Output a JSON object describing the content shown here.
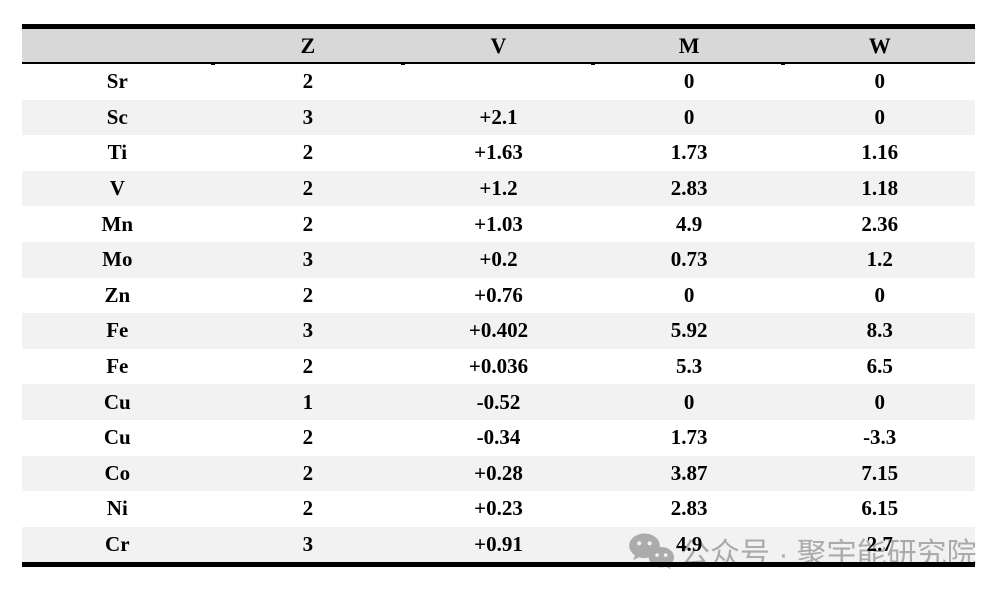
{
  "chart_data": {
    "type": "table",
    "columns": [
      "",
      "Z",
      "V",
      "M",
      "W"
    ],
    "rows": [
      {
        "element": "Sr",
        "Z": "2",
        "V": "",
        "M": "0",
        "W": "0"
      },
      {
        "element": "Sc",
        "Z": "3",
        "V": "+2.1",
        "M": "0",
        "W": "0"
      },
      {
        "element": "Ti",
        "Z": "2",
        "V": "+1.63",
        "M": "1.73",
        "W": "1.16"
      },
      {
        "element": "V",
        "Z": "2",
        "V": "+1.2",
        "M": "2.83",
        "W": "1.18"
      },
      {
        "element": "Mn",
        "Z": "2",
        "V": "+1.03",
        "M": "4.9",
        "W": "2.36"
      },
      {
        "element": "Mo",
        "Z": "3",
        "V": "+0.2",
        "M": "0.73",
        "W": "1.2"
      },
      {
        "element": "Zn",
        "Z": "2",
        "V": "+0.76",
        "M": "0",
        "W": "0"
      },
      {
        "element": "Fe",
        "Z": "3",
        "V": "+0.402",
        "M": "5.92",
        "W": "8.3"
      },
      {
        "element": "Fe",
        "Z": "2",
        "V": "+0.036",
        "M": "5.3",
        "W": "6.5"
      },
      {
        "element": "Cu",
        "Z": "1",
        "V": "-0.52",
        "M": "0",
        "W": "0"
      },
      {
        "element": "Cu",
        "Z": "2",
        "V": "-0.34",
        "M": "1.73",
        "W": "-3.3"
      },
      {
        "element": "Co",
        "Z": "2",
        "V": "+0.28",
        "M": "3.87",
        "W": "7.15"
      },
      {
        "element": "Ni",
        "Z": "2",
        "V": "+0.23",
        "M": "2.83",
        "W": "6.15"
      },
      {
        "element": "Cr",
        "Z": "3",
        "V": "+0.91",
        "M": "4.9",
        "W": "2.7"
      }
    ],
    "layout": {
      "header_background": "#d8d8d8",
      "alt_row_background": "#f2f2f2",
      "border_color": "#000000",
      "grid": "off"
    }
  },
  "watermark": {
    "icon": "wechat-icon",
    "text": "公众号 · 聚宇能研究院",
    "color": "#b4b4b4"
  }
}
